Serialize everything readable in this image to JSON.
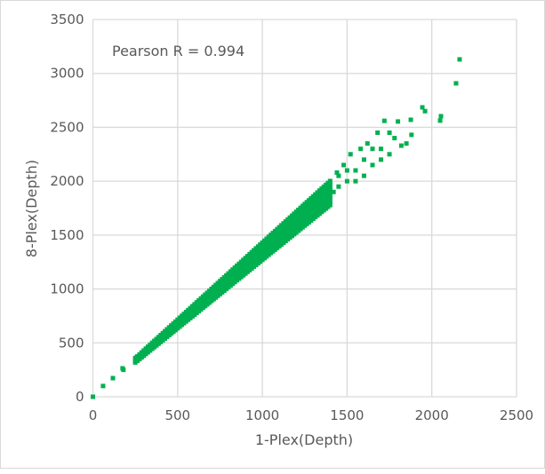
{
  "chart_data": {
    "type": "scatter",
    "title": "",
    "annotation": "Pearson R = 0.994",
    "xlabel": "1-Plex(Depth)",
    "ylabel": "8-Plex(Depth)",
    "xlim": [
      0,
      2500
    ],
    "ylim": [
      0,
      3500
    ],
    "xticks": [
      "0",
      "500",
      "1000",
      "1500",
      "2000",
      "2500"
    ],
    "yticks": [
      "0",
      "500",
      "1000",
      "1500",
      "2000",
      "2500",
      "3000",
      "3500"
    ],
    "grid": true,
    "marker_color": "#00b050",
    "band": {
      "x": [
        250,
        275,
        300,
        325,
        350,
        375,
        400,
        425,
        450,
        475,
        500,
        525,
        550,
        575,
        600,
        625,
        650,
        675,
        700,
        725,
        750,
        775,
        800,
        825,
        850,
        875,
        900,
        925,
        950,
        975,
        1000,
        1025,
        1050,
        1075,
        1100,
        1125,
        1150,
        1175,
        1200,
        1225,
        1250,
        1275,
        1300,
        1325,
        1350,
        1375,
        1400
      ],
      "y": [
        [
          318,
          330,
          343,
          358
        ],
        [
          349,
          363,
          377,
          393
        ],
        [
          381,
          396,
          411,
          429
        ],
        [
          413,
          429,
          445,
          465
        ],
        [
          445,
          462,
          480,
          501
        ],
        [
          476,
          495,
          514,
          536
        ],
        [
          508,
          528,
          548,
          572
        ],
        [
          540,
          561,
          582,
          608
        ],
        [
          572,
          594,
          617,
          644
        ],
        [
          603,
          627,
          651,
          679
        ],
        [
          635,
          660,
          685,
          715
        ],
        [
          667,
          693,
          719,
          751
        ],
        [
          699,
          726,
          754,
          787
        ],
        [
          730,
          759,
          788,
          822
        ],
        [
          762,
          792,
          822,
          858
        ],
        [
          794,
          825,
          856,
          894
        ],
        [
          826,
          858,
          891,
          930
        ],
        [
          857,
          891,
          925,
          965
        ],
        [
          889,
          924,
          959,
          1001
        ],
        [
          921,
          957,
          993,
          1037
        ],
        [
          953,
          990,
          1028,
          1073
        ],
        [
          984,
          1023,
          1062,
          1108
        ],
        [
          1016,
          1056,
          1096,
          1144
        ],
        [
          1048,
          1089,
          1130,
          1180
        ],
        [
          1080,
          1122,
          1165,
          1216
        ],
        [
          1111,
          1155,
          1199,
          1251
        ],
        [
          1143,
          1188,
          1233,
          1287
        ],
        [
          1175,
          1221,
          1267,
          1323
        ],
        [
          1207,
          1254,
          1302,
          1359
        ],
        [
          1238,
          1287,
          1336,
          1394
        ],
        [
          1270,
          1320,
          1370,
          1430
        ],
        [
          1302,
          1353,
          1404,
          1466
        ],
        [
          1334,
          1386,
          1439,
          1502
        ],
        [
          1365,
          1419,
          1473,
          1537
        ],
        [
          1397,
          1452,
          1507,
          1573
        ],
        [
          1429,
          1485,
          1541,
          1609
        ],
        [
          1461,
          1518,
          1576,
          1645
        ],
        [
          1492,
          1551,
          1610,
          1680
        ],
        [
          1524,
          1584,
          1644,
          1716
        ],
        [
          1556,
          1617,
          1678,
          1752
        ],
        [
          1588,
          1650,
          1713,
          1788
        ],
        [
          1619,
          1683,
          1747,
          1823
        ],
        [
          1651,
          1716,
          1781,
          1859
        ],
        [
          1683,
          1749,
          1815,
          1895
        ],
        [
          1715,
          1782,
          1850,
          1931
        ],
        [
          1746,
          1815,
          1884,
          1966
        ],
        [
          1778,
          1848,
          1918,
          2002
        ]
      ]
    },
    "points": [
      [
        0,
        0
      ],
      [
        60,
        100
      ],
      [
        118,
        173
      ],
      [
        175,
        264
      ],
      [
        180,
        250
      ],
      [
        254,
        362
      ],
      [
        265,
        370
      ],
      [
        300,
        410
      ],
      [
        1420,
        1900
      ],
      [
        1440,
        2080
      ],
      [
        1450,
        2050
      ],
      [
        1450,
        1950
      ],
      [
        1480,
        2150
      ],
      [
        1500,
        2000
      ],
      [
        1500,
        2100
      ],
      [
        1520,
        2250
      ],
      [
        1550,
        2100
      ],
      [
        1550,
        2000
      ],
      [
        1580,
        2300
      ],
      [
        1600,
        2200
      ],
      [
        1600,
        2050
      ],
      [
        1620,
        2350
      ],
      [
        1650,
        2150
      ],
      [
        1650,
        2300
      ],
      [
        1680,
        2450
      ],
      [
        1700,
        2300
      ],
      [
        1700,
        2200
      ],
      [
        1720,
        2560
      ],
      [
        1750,
        2250
      ],
      [
        1750,
        2450
      ],
      [
        1780,
        2400
      ],
      [
        1800,
        2554
      ],
      [
        1820,
        2330
      ],
      [
        1850,
        2350
      ],
      [
        1880,
        2430
      ],
      [
        1876,
        2570
      ],
      [
        1944,
        2685
      ],
      [
        1960,
        2650
      ],
      [
        2054,
        2603
      ],
      [
        2049,
        2562
      ],
      [
        2143,
        2908
      ],
      [
        2164,
        3130
      ]
    ]
  }
}
